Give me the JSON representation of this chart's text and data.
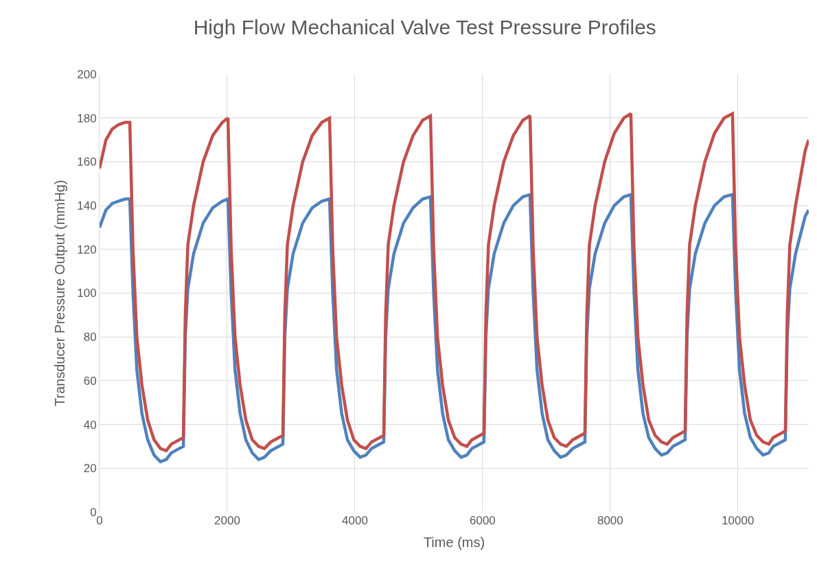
{
  "chart_data": {
    "type": "line",
    "title": "High Flow Mechanical Valve Test Pressure Profiles",
    "xlabel": "Time (ms)",
    "ylabel": "Transducer Pressure Output (mmHg)",
    "x": [
      0,
      100,
      200,
      300,
      400,
      474,
      524,
      584,
      664,
      754,
      854,
      954,
      1044,
      1123,
      1313,
      1343,
      1383,
      1473,
      1623,
      1773,
      1923,
      2012,
      2062,
      2122,
      2202,
      2292,
      2392,
      2492,
      2582,
      2682,
      2872,
      2902,
      2942,
      3032,
      3182,
      3332,
      3482,
      3603,
      3653,
      3713,
      3793,
      3883,
      3983,
      4083,
      4173,
      4262,
      4452,
      4482,
      4522,
      4612,
      4762,
      4912,
      5062,
      5184,
      5234,
      5294,
      5374,
      5464,
      5564,
      5664,
      5754,
      5832,
      6022,
      6052,
      6092,
      6182,
      6332,
      6482,
      6632,
      6743,
      6793,
      6853,
      6933,
      7023,
      7123,
      7223,
      7313,
      7413,
      7603,
      7633,
      7673,
      7763,
      7913,
      8063,
      8213,
      8323,
      8373,
      8433,
      8513,
      8603,
      8703,
      8803,
      8893,
      8983,
      9173,
      9203,
      9243,
      9333,
      9483,
      9633,
      9783,
      9915,
      9965,
      10025,
      10105,
      10195,
      10295,
      10395,
      10485,
      10553,
      10743,
      10773,
      10813,
      10903,
      11053,
      11108
    ],
    "series": [
      {
        "color": "#4f81bd",
        "values": [
          130,
          138,
          141,
          142,
          143,
          143,
          100,
          65,
          45,
          33,
          26,
          23,
          24,
          27,
          30,
          80,
          102,
          118,
          132,
          139,
          142,
          143,
          100,
          65,
          45,
          33,
          27,
          24,
          25,
          28,
          31,
          80,
          102,
          118,
          132,
          139,
          142,
          143,
          100,
          65,
          45,
          33,
          28,
          25,
          26,
          29,
          32,
          80,
          102,
          118,
          132,
          139,
          143,
          144,
          100,
          65,
          45,
          33,
          28,
          25,
          26,
          29,
          32,
          80,
          102,
          118,
          132,
          140,
          144,
          145,
          100,
          65,
          45,
          33,
          28,
          25,
          26,
          29,
          32,
          80,
          102,
          118,
          132,
          140,
          144,
          145,
          100,
          65,
          45,
          34,
          29,
          26,
          27,
          30,
          33,
          80,
          102,
          118,
          132,
          140,
          144,
          145,
          100,
          65,
          45,
          34,
          29,
          26,
          27,
          30,
          33,
          80,
          102,
          118,
          135,
          138
        ]
      },
      {
        "color": "#c0504d",
        "values": [
          157,
          170,
          175,
          177,
          178,
          178,
          120,
          80,
          58,
          42,
          33,
          29,
          28,
          31,
          34,
          90,
          122,
          140,
          160,
          172,
          178,
          180,
          120,
          80,
          58,
          42,
          33,
          30,
          29,
          32,
          35,
          90,
          122,
          140,
          160,
          172,
          178,
          180,
          120,
          80,
          58,
          42,
          33,
          30,
          29,
          32,
          35,
          90,
          122,
          140,
          160,
          172,
          179,
          181,
          120,
          80,
          58,
          42,
          34,
          31,
          30,
          33,
          36,
          90,
          122,
          140,
          160,
          172,
          179,
          181,
          120,
          80,
          58,
          42,
          34,
          31,
          30,
          33,
          36,
          90,
          122,
          140,
          160,
          173,
          180,
          182,
          120,
          80,
          58,
          42,
          35,
          32,
          31,
          34,
          37,
          90,
          122,
          140,
          160,
          173,
          180,
          182,
          120,
          80,
          58,
          42,
          35,
          32,
          31,
          34,
          37,
          90,
          122,
          140,
          165,
          170
        ]
      }
    ],
    "xlim": [
      0,
      11110
    ],
    "xticks": [
      0,
      2000,
      4000,
      6000,
      8000,
      10000
    ],
    "ylim": [
      0,
      200
    ],
    "yticks": [
      0,
      20,
      40,
      60,
      80,
      100,
      120,
      140,
      160,
      180,
      200
    ],
    "grid": true,
    "marker": "none",
    "line_style": "solid"
  }
}
